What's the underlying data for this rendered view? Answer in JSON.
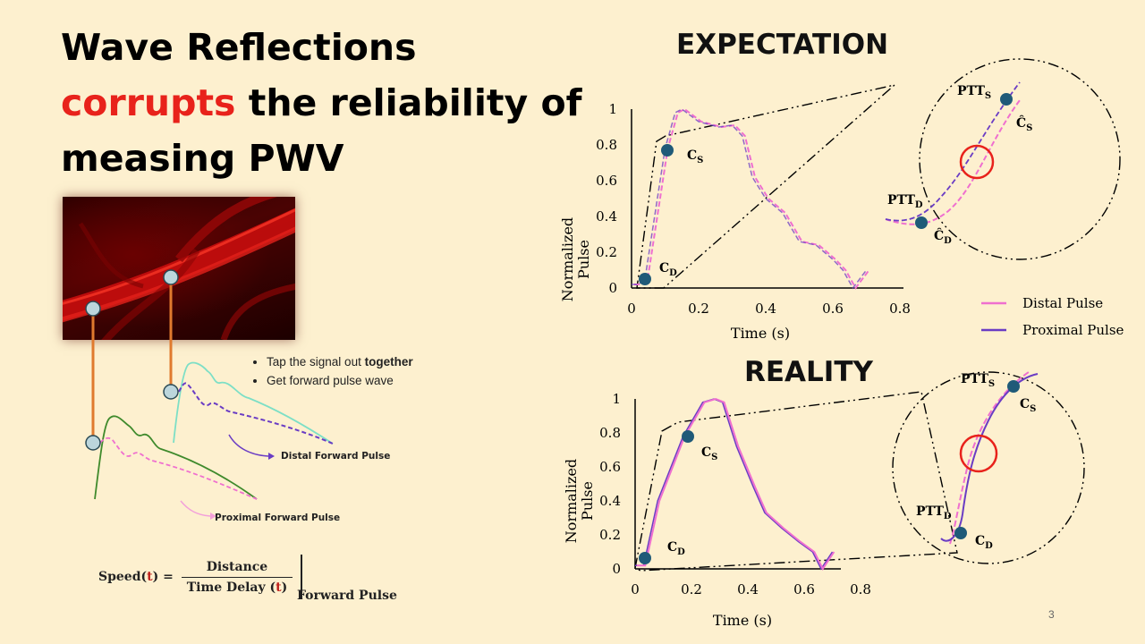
{
  "title": {
    "line1": "Wave Reflections",
    "highlight": "corrupts",
    "line2_rest": " the reliability of",
    "line3": "measing PWV"
  },
  "bullets": [
    {
      "prefix": "Tap the signal out ",
      "bold": "together"
    },
    {
      "prefix": "Get forward pulse wave",
      "bold": ""
    }
  ],
  "labels": {
    "distal_forward": "Distal Forward Pulse",
    "proximal_forward": "Proximal Forward Pulse"
  },
  "formula": {
    "lhs": "Speed(",
    "t": "t",
    "lhs_close": ") =",
    "numerator": "Distance",
    "denominator": "Time Delay (",
    "den_close": ")",
    "subscript": "Forward Pulse"
  },
  "colors": {
    "accent_red": "#e8221b",
    "distal": "#ef6fcf",
    "proximal": "#6a3cc4",
    "marker": "#1f5a78",
    "forward_distal": "#7ddfc6",
    "forward_proximal": "#3f8a2c",
    "vertical_link": "#e07a2e"
  },
  "expectation": {
    "heading": "EXPECTATION",
    "ylabel": "Normalized\nPulse",
    "xlabel": "Time (s)",
    "x_ticks": [
      "0",
      "0.2",
      "0.4",
      "0.6",
      "0.8"
    ],
    "y_ticks": [
      "0",
      "0.2",
      "0.4",
      "0.6",
      "0.8",
      "1"
    ],
    "points": {
      "cs": "C",
      "cs_sub": "S",
      "cd": "C",
      "cd_sub": "D"
    },
    "zoom": {
      "ptt_s": "PTT",
      "ptt_s_sub": "S",
      "ptt_d": "PTT",
      "ptt_d_sub": "D",
      "chat_s": "Ĉ",
      "chat_s_sub": "S",
      "chat_d": "Ĉ",
      "chat_d_sub": "D"
    }
  },
  "reality": {
    "heading": "REALITY",
    "ylabel": "Normalized\nPulse",
    "xlabel": "Time (s)",
    "x_ticks": [
      "0",
      "0.2",
      "0.4",
      "0.6",
      "0.8"
    ],
    "y_ticks": [
      "0",
      "0.2",
      "0.4",
      "0.6",
      "0.8",
      "1"
    ],
    "points": {
      "cs": "C",
      "cs_sub": "S",
      "cd": "C",
      "cd_sub": "D"
    },
    "zoom": {
      "ptt_s": "PTT",
      "ptt_s_sub": "S",
      "ptt_d": "PTT",
      "ptt_d_sub": "D",
      "c_s": "C",
      "c_s_sub": "S",
      "c_d": "C",
      "c_d_sub": "D"
    }
  },
  "legend": [
    {
      "name": "Distal Pulse",
      "color": "#ef6fcf"
    },
    {
      "name": "Proximal Pulse",
      "color": "#6a3cc4"
    }
  ],
  "page_number": "3"
}
